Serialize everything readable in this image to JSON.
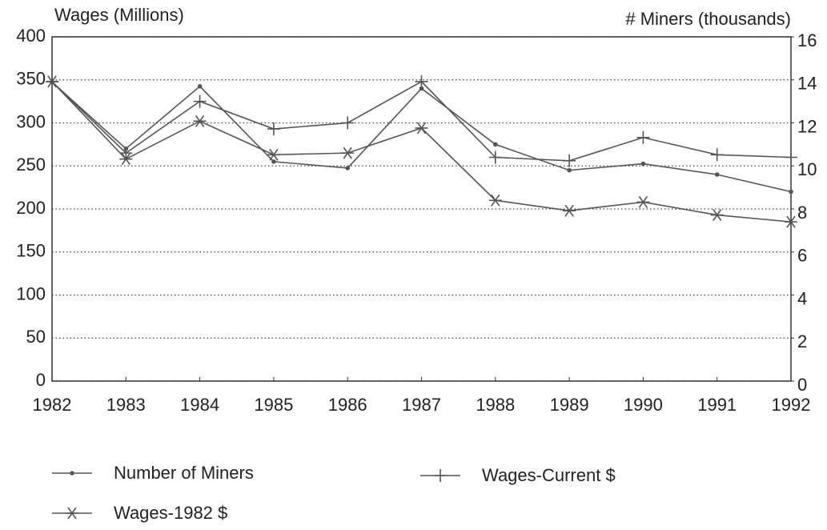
{
  "chart_data": {
    "type": "line",
    "y_label": "Wages (Millions)",
    "y2_label": "# Miners (thousands)",
    "categories": [
      "1982",
      "1983",
      "1984",
      "1985",
      "1986",
      "1987",
      "1988",
      "1989",
      "1990",
      "1991",
      "1992"
    ],
    "ylim": [
      0,
      400
    ],
    "yticks": [
      0,
      50,
      100,
      150,
      200,
      250,
      300,
      350,
      400
    ],
    "y2lim": [
      0,
      16
    ],
    "y2ticks": [
      0,
      2,
      4,
      6,
      8,
      10,
      12,
      14,
      16
    ],
    "grid": true,
    "series": [
      {
        "name": "Number of Miners",
        "color": "#555555",
        "marker": "dot",
        "axis": "y2",
        "values": [
          13.9,
          10.8,
          13.7,
          10.2,
          9.9,
          13.6,
          11.0,
          9.8,
          10.1,
          9.6,
          8.8
        ]
      },
      {
        "name": "Wages-Current $",
        "color": "#555555",
        "marker": "plus",
        "values": [
          348,
          265,
          325,
          293,
          300,
          348,
          260,
          256,
          283,
          263,
          260
        ]
      },
      {
        "name": "Wages-1982 $",
        "color": "#555555",
        "marker": "star",
        "values": [
          348,
          258,
          302,
          263,
          265,
          294,
          210,
          198,
          208,
          193,
          185
        ]
      }
    ]
  }
}
